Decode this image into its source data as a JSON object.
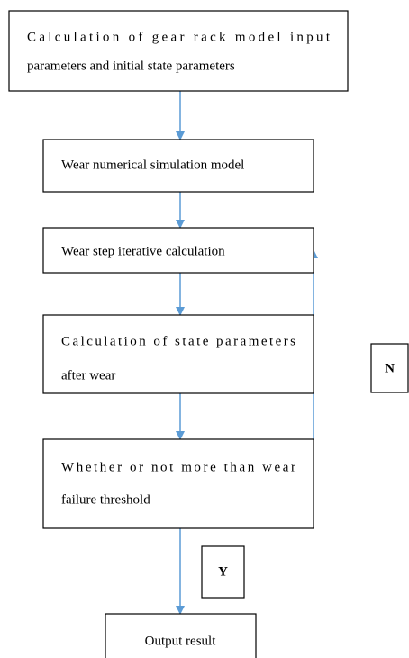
{
  "nodes": [
    {
      "lines": [
        "Calculation of gear rack model input",
        "parameters and initial state parameters"
      ]
    },
    {
      "lines": [
        "Wear numerical simulation model"
      ]
    },
    {
      "lines": [
        "Wear step iterative calculation"
      ]
    },
    {
      "lines": [
        "Calculation of state parameters",
        "after wear"
      ]
    },
    {
      "lines": [
        "Whether or not more than wear",
        "failure threshold"
      ]
    },
    {
      "lines": [
        "Output result"
      ]
    }
  ],
  "labels": {
    "no": "N",
    "yes": "Y"
  }
}
